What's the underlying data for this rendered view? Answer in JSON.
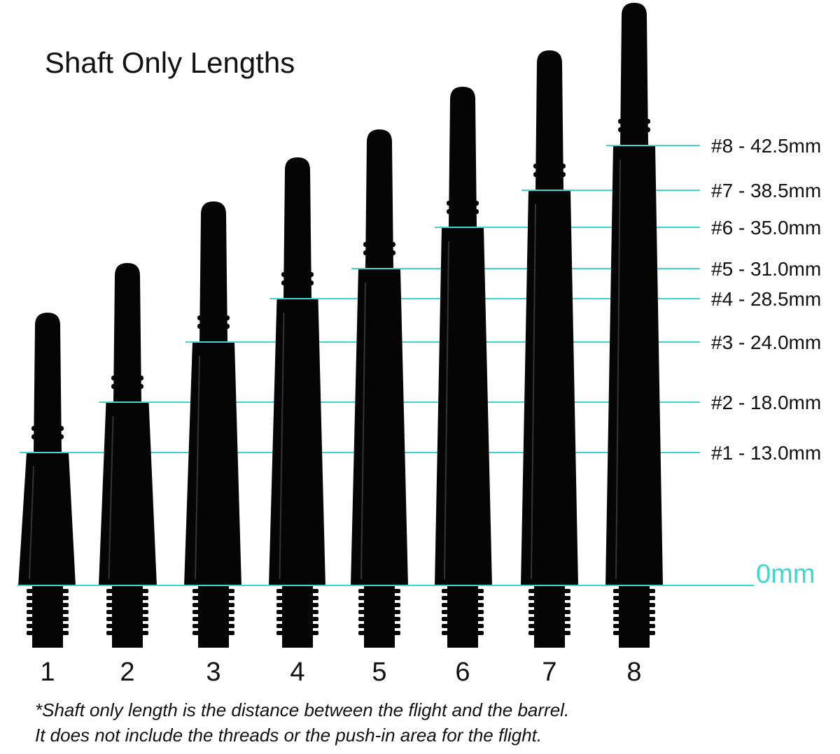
{
  "title": "Shaft Only Lengths",
  "zero_label": "0mm",
  "accent_color": "#3fd6d0",
  "shaft_color": "#050505",
  "shafts": [
    {
      "number": "1",
      "label": "#1 - 13.0mm"
    },
    {
      "number": "2",
      "label": "#2 - 18.0mm"
    },
    {
      "number": "3",
      "label": "#3 - 24.0mm"
    },
    {
      "number": "4",
      "label": "#4 - 28.5mm"
    },
    {
      "number": "5",
      "label": "#5 - 31.0mm"
    },
    {
      "number": "6",
      "label": "#6 - 35.0mm"
    },
    {
      "number": "7",
      "label": "#7 - 38.5mm"
    },
    {
      "number": "8",
      "label": "#8 - 42.5mm"
    }
  ],
  "footnote": [
    "*Shaft only length is the distance between the flight and the barrel.",
    "It does not include the threads or the push-in area for the flight."
  ]
}
